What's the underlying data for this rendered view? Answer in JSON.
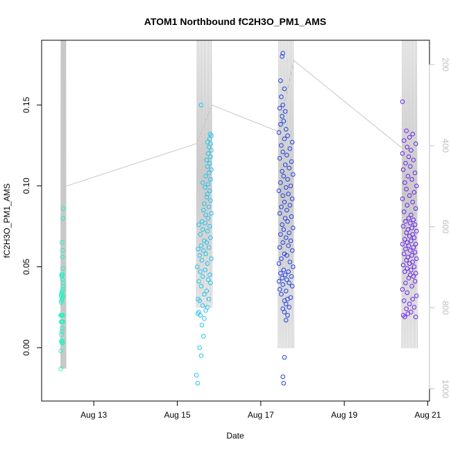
{
  "chart_data": {
    "type": "scatter",
    "title": "ATOM1 Northbound fC2H3O_PM1_AMS",
    "xlabel": "Date",
    "ylabel": "fC2H3O_PM1_AMS",
    "x_ticks": [
      "Aug 13",
      "Aug 15",
      "Aug 17",
      "Aug 19",
      "Aug 21"
    ],
    "y_ticks": [
      "0.00",
      "0.05",
      "0.10",
      "0.15"
    ],
    "y2_ticks": [
      "200",
      "400",
      "600",
      "800",
      "1000"
    ],
    "xlim": [
      "2012-08-11 18:00",
      "2012-08-21 01:00"
    ],
    "ylim": [
      -0.033,
      0.19
    ],
    "y2lim_reversed": [
      140,
      1030
    ],
    "grid": false,
    "colors": {
      "altitude_line": "#c8c8c8",
      "day1": "#23f2c2",
      "day2": "#22c4ee",
      "day3": "#1f3fe6",
      "day4": "#6a22ee",
      "right_axis": "#bdbdbd"
    },
    "series": [
      {
        "color": "#23f2c2",
        "x_range": [
          "2012-08-12 05:00",
          "2012-08-12 08:00"
        ],
        "points": [
          [
            0.0,
            -0.013
          ],
          [
            0.0,
            -0.002
          ],
          [
            0.1,
            0.004
          ],
          [
            0.2,
            0.003
          ],
          [
            0.3,
            0.004
          ],
          [
            0.4,
            0.003
          ],
          [
            0.1,
            0.008
          ],
          [
            0.2,
            0.01
          ],
          [
            0.3,
            0.012
          ],
          [
            0.1,
            0.016
          ],
          [
            0.2,
            0.016
          ],
          [
            0.3,
            0.016
          ],
          [
            0.4,
            0.016
          ],
          [
            0.0,
            0.02
          ],
          [
            0.1,
            0.02
          ],
          [
            0.2,
            0.02
          ],
          [
            0.3,
            0.02
          ],
          [
            0.4,
            0.02
          ],
          [
            0.05,
            0.028
          ],
          [
            0.15,
            0.029
          ],
          [
            0.25,
            0.03
          ],
          [
            0.35,
            0.031
          ],
          [
            0.45,
            0.032
          ],
          [
            0.05,
            0.032
          ],
          [
            0.1,
            0.033
          ],
          [
            0.2,
            0.034
          ],
          [
            0.3,
            0.035
          ],
          [
            0.4,
            0.036
          ],
          [
            0.5,
            0.038
          ],
          [
            0.45,
            0.04
          ],
          [
            0.3,
            0.042
          ],
          [
            0.2,
            0.044
          ],
          [
            0.25,
            0.045
          ],
          [
            0.35,
            0.045
          ],
          [
            0.15,
            0.045
          ],
          [
            0.4,
            0.049
          ],
          [
            0.3,
            0.056
          ],
          [
            0.35,
            0.06
          ],
          [
            0.25,
            0.065
          ],
          [
            0.4,
            0.08
          ],
          [
            0.5,
            0.086
          ]
        ]
      },
      {
        "color": "#22c4ee",
        "x_range": [
          "2012-08-15 11:00",
          "2012-08-15 20:00"
        ],
        "points": [
          [
            0.0,
            -0.017
          ],
          [
            0.08,
            -0.022
          ],
          [
            0.3,
            -0.005
          ],
          [
            0.2,
            0.0
          ],
          [
            0.45,
            0.007
          ],
          [
            0.35,
            0.014
          ],
          [
            0.5,
            0.018
          ],
          [
            0.1,
            0.021
          ],
          [
            0.25,
            0.02
          ],
          [
            0.15,
            0.022
          ],
          [
            0.6,
            0.023
          ],
          [
            0.7,
            0.025
          ],
          [
            0.4,
            0.026
          ],
          [
            0.2,
            0.029
          ],
          [
            0.8,
            0.03
          ],
          [
            0.1,
            0.03
          ],
          [
            0.5,
            0.033
          ],
          [
            0.65,
            0.035
          ],
          [
            0.3,
            0.038
          ],
          [
            0.9,
            0.04
          ],
          [
            0.15,
            0.041
          ],
          [
            0.75,
            0.042
          ],
          [
            0.4,
            0.044
          ],
          [
            0.85,
            0.045
          ],
          [
            0.25,
            0.047
          ],
          [
            0.55,
            0.048
          ],
          [
            0.05,
            0.05
          ],
          [
            0.7,
            0.052
          ],
          [
            0.35,
            0.054
          ],
          [
            0.95,
            0.055
          ],
          [
            0.2,
            0.057
          ],
          [
            0.6,
            0.058
          ],
          [
            0.45,
            0.06
          ],
          [
            0.1,
            0.061
          ],
          [
            0.8,
            0.062
          ],
          [
            0.3,
            0.063
          ],
          [
            0.65,
            0.065
          ],
          [
            0.5,
            0.066
          ],
          [
            0.9,
            0.068
          ],
          [
            0.25,
            0.07
          ],
          [
            0.7,
            0.072
          ],
          [
            0.4,
            0.073
          ],
          [
            0.85,
            0.075
          ],
          [
            0.15,
            0.076
          ],
          [
            0.55,
            0.077
          ],
          [
            0.35,
            0.078
          ],
          [
            0.75,
            0.08
          ],
          [
            0.6,
            0.082
          ],
          [
            0.95,
            0.083
          ],
          [
            0.45,
            0.085
          ],
          [
            0.8,
            0.087
          ],
          [
            0.5,
            0.089
          ],
          [
            0.9,
            0.091
          ],
          [
            0.65,
            0.093
          ],
          [
            0.7,
            0.095
          ],
          [
            0.85,
            0.097
          ],
          [
            0.55,
            0.099
          ],
          [
            0.75,
            0.101
          ],
          [
            0.4,
            0.102
          ],
          [
            0.9,
            0.104
          ],
          [
            0.6,
            0.106
          ],
          [
            0.8,
            0.108
          ],
          [
            0.95,
            0.11
          ],
          [
            0.7,
            0.112
          ],
          [
            0.85,
            0.114
          ],
          [
            0.65,
            0.116
          ],
          [
            0.9,
            0.118
          ],
          [
            0.75,
            0.12
          ],
          [
            0.95,
            0.122
          ],
          [
            0.8,
            0.124
          ],
          [
            0.9,
            0.126
          ],
          [
            0.7,
            0.127
          ],
          [
            0.85,
            0.129
          ],
          [
            0.95,
            0.131
          ],
          [
            0.88,
            0.132
          ],
          [
            0.3,
            0.15
          ]
        ]
      },
      {
        "color": "#1f3fe6",
        "x_range": [
          "2012-08-17 10:00",
          "2012-08-17 19:00"
        ],
        "points": [
          [
            0.35,
            -0.022
          ],
          [
            0.3,
            -0.018
          ],
          [
            0.4,
            -0.006
          ],
          [
            0.5,
            0.017
          ],
          [
            0.6,
            0.02
          ],
          [
            0.4,
            0.022
          ],
          [
            0.3,
            0.024
          ],
          [
            0.7,
            0.025
          ],
          [
            0.5,
            0.027
          ],
          [
            0.4,
            0.029
          ],
          [
            0.6,
            0.03
          ],
          [
            0.8,
            0.031
          ],
          [
            0.2,
            0.033
          ],
          [
            0.5,
            0.035
          ],
          [
            0.1,
            0.036
          ],
          [
            0.9,
            0.038
          ],
          [
            0.3,
            0.039
          ],
          [
            0.7,
            0.04
          ],
          [
            0.05,
            0.041
          ],
          [
            0.55,
            0.042
          ],
          [
            0.25,
            0.043
          ],
          [
            0.85,
            0.044
          ],
          [
            0.45,
            0.045
          ],
          [
            0.15,
            0.046
          ],
          [
            0.65,
            0.047
          ],
          [
            0.35,
            0.048
          ],
          [
            0.95,
            0.05
          ],
          [
            0.05,
            0.052
          ],
          [
            0.75,
            0.053
          ],
          [
            0.2,
            0.055
          ],
          [
            0.55,
            0.057
          ],
          [
            0.4,
            0.058
          ],
          [
            0.9,
            0.06
          ],
          [
            0.1,
            0.062
          ],
          [
            0.65,
            0.063
          ],
          [
            0.3,
            0.065
          ],
          [
            0.8,
            0.066
          ],
          [
            0.5,
            0.068
          ],
          [
            0.15,
            0.07
          ],
          [
            0.7,
            0.071
          ],
          [
            0.35,
            0.073
          ],
          [
            0.95,
            0.074
          ],
          [
            0.25,
            0.076
          ],
          [
            0.6,
            0.078
          ],
          [
            0.45,
            0.08
          ],
          [
            0.85,
            0.081
          ],
          [
            0.1,
            0.083
          ],
          [
            0.55,
            0.085
          ],
          [
            0.2,
            0.087
          ],
          [
            0.75,
            0.088
          ],
          [
            0.4,
            0.09
          ],
          [
            0.9,
            0.092
          ],
          [
            0.3,
            0.094
          ],
          [
            0.65,
            0.095
          ],
          [
            0.05,
            0.097
          ],
          [
            0.5,
            0.099
          ],
          [
            0.8,
            0.1
          ],
          [
            0.15,
            0.102
          ],
          [
            0.6,
            0.104
          ],
          [
            0.35,
            0.106
          ],
          [
            0.95,
            0.107
          ],
          [
            0.25,
            0.109
          ],
          [
            0.7,
            0.111
          ],
          [
            0.45,
            0.113
          ],
          [
            0.85,
            0.115
          ],
          [
            0.1,
            0.117
          ],
          [
            0.55,
            0.119
          ],
          [
            0.3,
            0.121
          ],
          [
            0.75,
            0.123
          ],
          [
            0.2,
            0.125
          ],
          [
            0.9,
            0.127
          ],
          [
            0.4,
            0.129
          ],
          [
            0.6,
            0.131
          ],
          [
            0.05,
            0.133
          ],
          [
            0.5,
            0.135
          ],
          [
            0.15,
            0.138
          ],
          [
            0.35,
            0.14
          ],
          [
            0.25,
            0.143
          ],
          [
            0.45,
            0.146
          ],
          [
            0.1,
            0.148
          ],
          [
            0.3,
            0.15
          ],
          [
            0.2,
            0.155
          ],
          [
            0.4,
            0.16
          ],
          [
            0.15,
            0.165
          ],
          [
            0.25,
            0.18
          ],
          [
            0.3,
            0.182
          ]
        ]
      },
      {
        "color": "#6a22ee",
        "x_range": [
          "2012-08-20 09:00",
          "2012-08-20 18:00"
        ],
        "points": [
          [
            0.2,
            0.019
          ],
          [
            0.1,
            0.02
          ],
          [
            0.9,
            0.019
          ],
          [
            0.4,
            0.021
          ],
          [
            0.6,
            0.022
          ],
          [
            0.3,
            0.024
          ],
          [
            0.8,
            0.025
          ],
          [
            0.5,
            0.027
          ],
          [
            0.15,
            0.029
          ],
          [
            0.7,
            0.03
          ],
          [
            0.95,
            0.032
          ],
          [
            0.35,
            0.034
          ],
          [
            0.05,
            0.036
          ],
          [
            0.65,
            0.038
          ],
          [
            0.25,
            0.04
          ],
          [
            0.85,
            0.041
          ],
          [
            0.45,
            0.043
          ],
          [
            0.75,
            0.044
          ],
          [
            0.55,
            0.045
          ],
          [
            0.9,
            0.046
          ],
          [
            0.2,
            0.047
          ],
          [
            0.6,
            0.048
          ],
          [
            0.35,
            0.049
          ],
          [
            0.8,
            0.05
          ],
          [
            0.1,
            0.051
          ],
          [
            0.5,
            0.052
          ],
          [
            0.7,
            0.053
          ],
          [
            0.3,
            0.054
          ],
          [
            0.95,
            0.055
          ],
          [
            0.4,
            0.056
          ],
          [
            0.65,
            0.057
          ],
          [
            0.15,
            0.058
          ],
          [
            0.85,
            0.059
          ],
          [
            0.55,
            0.06
          ],
          [
            0.25,
            0.061
          ],
          [
            0.75,
            0.062
          ],
          [
            0.45,
            0.063
          ],
          [
            0.05,
            0.064
          ],
          [
            0.9,
            0.064
          ],
          [
            0.35,
            0.065
          ],
          [
            0.6,
            0.066
          ],
          [
            0.2,
            0.067
          ],
          [
            0.8,
            0.068
          ],
          [
            0.5,
            0.069
          ],
          [
            0.7,
            0.07
          ],
          [
            0.3,
            0.071
          ],
          [
            0.95,
            0.072
          ],
          [
            0.4,
            0.073
          ],
          [
            0.65,
            0.074
          ],
          [
            0.1,
            0.075
          ],
          [
            0.85,
            0.076
          ],
          [
            0.55,
            0.077
          ],
          [
            0.25,
            0.078
          ],
          [
            0.75,
            0.079
          ],
          [
            0.45,
            0.08
          ],
          [
            0.6,
            0.082
          ],
          [
            0.15,
            0.084
          ],
          [
            0.9,
            0.086
          ],
          [
            0.35,
            0.088
          ],
          [
            0.7,
            0.09
          ],
          [
            0.05,
            0.092
          ],
          [
            0.5,
            0.094
          ],
          [
            0.8,
            0.096
          ],
          [
            0.3,
            0.098
          ],
          [
            0.95,
            0.1
          ],
          [
            0.2,
            0.102
          ],
          [
            0.65,
            0.104
          ],
          [
            0.4,
            0.106
          ],
          [
            0.85,
            0.108
          ],
          [
            0.1,
            0.11
          ],
          [
            0.55,
            0.112
          ],
          [
            0.25,
            0.114
          ],
          [
            0.75,
            0.116
          ],
          [
            0.45,
            0.118
          ],
          [
            0.05,
            0.12
          ],
          [
            0.6,
            0.122
          ],
          [
            0.35,
            0.124
          ],
          [
            0.9,
            0.126
          ],
          [
            0.15,
            0.128
          ],
          [
            0.5,
            0.13
          ],
          [
            0.7,
            0.132
          ],
          [
            0.3,
            0.134
          ],
          [
            0.05,
            0.152
          ]
        ]
      }
    ],
    "altitude_segments": [
      {
        "x": [
          "2012-08-12 05:00",
          "2012-08-12 08:00"
        ],
        "y2": [
          120,
          950
        ]
      },
      {
        "x": [
          "2012-08-15 11:00",
          "2012-08-15 20:00"
        ],
        "y2": [
          120,
          800
        ]
      },
      {
        "x": [
          "2012-08-17 10:00",
          "2012-08-17 19:00"
        ],
        "y2": [
          120,
          900
        ]
      },
      {
        "x": [
          "2012-08-20 09:00",
          "2012-08-20 18:00"
        ],
        "y2": [
          120,
          900
        ]
      }
    ],
    "altitude_transits": [
      {
        "x": "2012-08-12 08:00",
        "y2": 500
      },
      {
        "x": "2012-08-15 11:00",
        "y2": 395
      },
      {
        "x": "2012-08-15 20:00",
        "y2": 300
      },
      {
        "x": "2012-08-17 10:00",
        "y2": 365
      },
      {
        "x": "2012-08-17 19:00",
        "y2": 190
      },
      {
        "x": "2012-08-20 09:00",
        "y2": 405
      }
    ]
  }
}
